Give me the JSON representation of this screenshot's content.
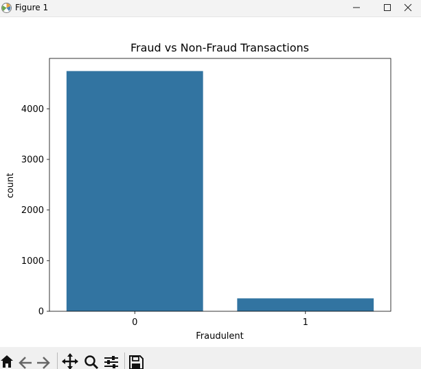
{
  "window": {
    "title": "Figure 1",
    "controls": {
      "minimize_icon": "minimize-icon",
      "maximize_icon": "maximize-icon",
      "close_icon": "close-icon"
    }
  },
  "toolbar": {
    "tools": [
      "home-icon",
      "back-arrow-icon",
      "forward-arrow-icon",
      "pan-move-icon",
      "zoom-magnifier-icon",
      "configure-subplots-icon",
      "save-floppy-icon"
    ]
  },
  "chart_data": {
    "type": "bar",
    "title": "Fraud vs Non-Fraud Transactions",
    "xlabel": "Fraudulent",
    "ylabel": "count",
    "categories": [
      "0",
      "1"
    ],
    "values": [
      4745,
      255
    ],
    "ylim": [
      0,
      4995
    ],
    "yticks": [
      0,
      1000,
      2000,
      3000,
      4000
    ],
    "ytick_labels": [
      "0",
      "1000",
      "2000",
      "3000",
      "4000"
    ],
    "bar_color": "#3274a1",
    "grid": false,
    "legend": "none"
  }
}
